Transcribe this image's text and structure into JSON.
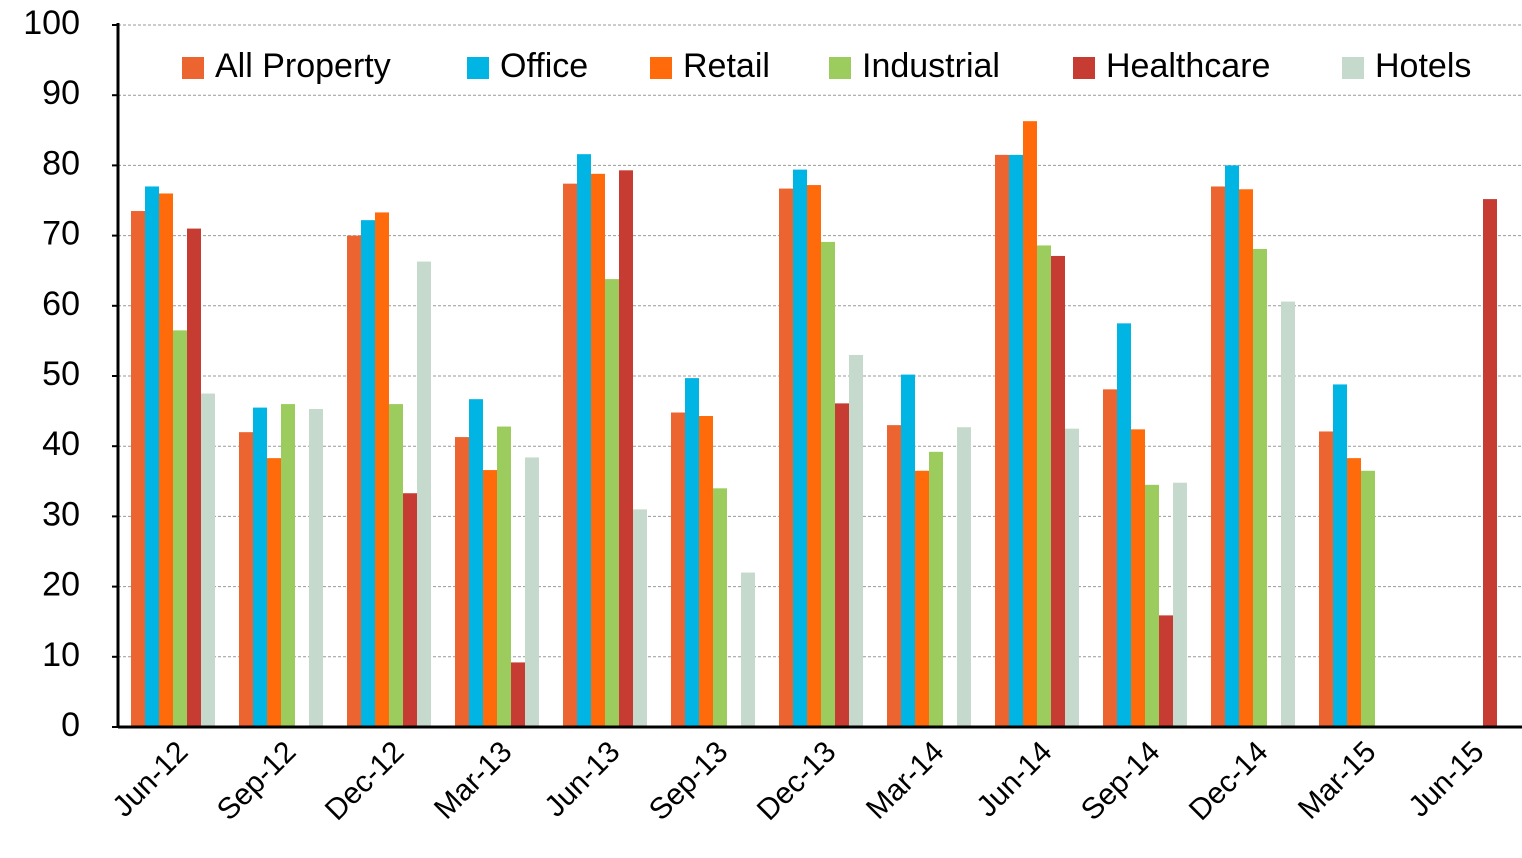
{
  "chart_data": {
    "type": "bar",
    "categories": [
      "Jun-12",
      "Sep-12",
      "Dec-12",
      "Mar-13",
      "Jun-13",
      "Sep-13",
      "Dec-13",
      "Mar-14",
      "Jun-14",
      "Sep-14",
      "Dec-14",
      "Mar-15",
      "Jun-15"
    ],
    "series": [
      {
        "name": "All Property",
        "color": "#ec6530",
        "values": [
          73.5,
          42,
          70,
          41.3,
          77.4,
          44.8,
          76.7,
          43,
          81.5,
          48.1,
          77,
          42.1,
          null
        ]
      },
      {
        "name": "Office",
        "color": "#00b4e4",
        "values": [
          77,
          45.5,
          72.2,
          46.7,
          81.6,
          49.7,
          79.4,
          50.2,
          81.5,
          57.5,
          80,
          48.8,
          null
        ]
      },
      {
        "name": "Retail",
        "color": "#ff6a0a",
        "values": [
          76,
          38.3,
          73.3,
          36.6,
          78.8,
          44.3,
          77.2,
          36.5,
          86.3,
          42.4,
          76.6,
          38.3,
          null
        ]
      },
      {
        "name": "Industrial",
        "color": "#9dcc5e",
        "values": [
          56.5,
          46,
          46,
          42.8,
          63.8,
          34,
          69.1,
          39.2,
          68.6,
          34.5,
          68.1,
          36.5,
          null
        ]
      },
      {
        "name": "Healthcare",
        "color": "#c63c32",
        "values": [
          71,
          null,
          33.3,
          9.2,
          79.3,
          null,
          46.1,
          null,
          67.1,
          15.9,
          null,
          null,
          75.2
        ]
      },
      {
        "name": "Hotels",
        "color": "#c5d9cd",
        "values": [
          47.5,
          45.3,
          66.3,
          38.4,
          31,
          22,
          53,
          42.7,
          42.5,
          34.8,
          60.6,
          null,
          null
        ]
      }
    ],
    "ylim": [
      0,
      100
    ],
    "yticks": [
      0,
      10,
      20,
      30,
      40,
      50,
      60,
      70,
      80,
      90,
      100
    ],
    "grid": true,
    "legend": "top"
  }
}
